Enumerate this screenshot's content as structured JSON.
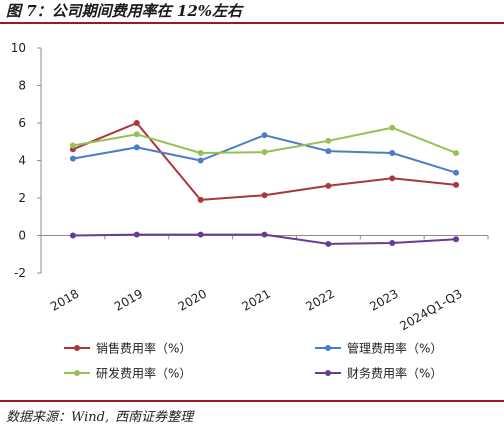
{
  "figure": {
    "title": "图 7：公司期间费用率在 12%左右",
    "source_label": "数据来源：",
    "source_wind": "Wind,",
    "source_firm": "西南证券整理"
  },
  "chart_data": {
    "type": "line",
    "title": "",
    "xlabel": "",
    "ylabel": "",
    "x": [
      "2018",
      "2019",
      "2020",
      "2021",
      "2022",
      "2023",
      "2024Q1-Q3"
    ],
    "ylim": [
      -2,
      10
    ],
    "yticks": [
      -2,
      0,
      2,
      4,
      6,
      8,
      10
    ],
    "ytick_labels": [
      "-2",
      "0",
      "2",
      "4",
      "6",
      "8",
      "10"
    ],
    "grid": false,
    "legend_position": "bottom",
    "series": [
      {
        "name": "销售费用率（%）",
        "color": "#a8383b",
        "values": [
          4.6,
          6.0,
          1.9,
          2.15,
          2.65,
          3.05,
          2.7
        ]
      },
      {
        "name": "管理费用率（%）",
        "color": "#4a7ec6",
        "values": [
          4.1,
          4.7,
          4.0,
          5.35,
          4.5,
          4.4,
          3.35
        ]
      },
      {
        "name": "研发费用率（%）",
        "color": "#94c154",
        "values": [
          4.8,
          5.4,
          4.4,
          4.45,
          5.05,
          5.75,
          4.4
        ]
      },
      {
        "name": "财务费用率（%）",
        "color": "#6a3a98",
        "values": [
          0.0,
          0.05,
          0.05,
          0.05,
          -0.45,
          -0.4,
          -0.2
        ]
      }
    ]
  }
}
